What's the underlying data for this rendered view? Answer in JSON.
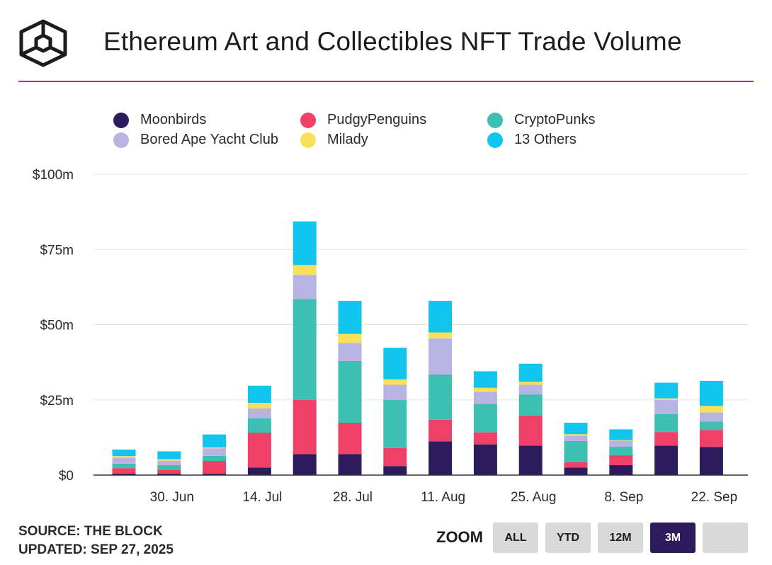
{
  "header": {
    "title": "Ethereum Art and Collectibles NFT Trade Volume"
  },
  "colors": {
    "accent_line": "#9b2bc1",
    "zoom_active": "#2c1c5c"
  },
  "chart_data": {
    "type": "bar",
    "stacked": true,
    "title": "Ethereum Art and Collectibles NFT Trade Volume",
    "xlabel": "",
    "ylabel": "",
    "ylim": [
      0,
      100
    ],
    "y_ticks": [
      0,
      25,
      50,
      75,
      100
    ],
    "y_tick_labels": [
      "$0",
      "$25m",
      "$50m",
      "$75m",
      "$100m"
    ],
    "x_tick_labels": [
      {
        "index": 1,
        "label": "30. Jun"
      },
      {
        "index": 3,
        "label": "14. Jul"
      },
      {
        "index": 5,
        "label": "28. Jul"
      },
      {
        "index": 7,
        "label": "11. Aug"
      },
      {
        "index": 9,
        "label": "25. Aug"
      },
      {
        "index": 11,
        "label": "8. Sep"
      },
      {
        "index": 13,
        "label": "22. Sep"
      }
    ],
    "grid": true,
    "legend_position": "top",
    "categories": [
      "",
      "30. Jun",
      "",
      "14. Jul",
      "",
      "28. Jul",
      "",
      "11. Aug",
      "",
      "25. Aug",
      "",
      "8. Sep",
      "",
      "22. Sep"
    ],
    "series": [
      {
        "name": "Moonbirds",
        "color": "#2c1c5c",
        "values": [
          0.5,
          0.5,
          0.5,
          2.5,
          7,
          7,
          3,
          11.2,
          10.2,
          9.8,
          2.5,
          3.3,
          9.8,
          9.3
        ]
      },
      {
        "name": "PudgyPenguins",
        "color": "#ef4068",
        "values": [
          1.8,
          1.3,
          4.2,
          11.6,
          18,
          10.4,
          6,
          7.2,
          4,
          10,
          1.8,
          3.3,
          4.5,
          5.7
        ]
      },
      {
        "name": "CryptoPunks",
        "color": "#3dbfb2",
        "values": [
          1.5,
          1.5,
          1.7,
          4.8,
          33.5,
          20.5,
          16,
          15,
          9.5,
          7,
          7,
          2.8,
          6,
          2.8
        ]
      },
      {
        "name": "Bored Ape Yacht Club",
        "color": "#b8b3e3",
        "values": [
          2,
          1.5,
          2.5,
          3.3,
          8,
          6,
          5,
          12,
          4,
          3.2,
          1.8,
          2,
          4.7,
          3
        ]
      },
      {
        "name": "Milady",
        "color": "#f8e15a",
        "values": [
          0.5,
          0.5,
          0.3,
          1.8,
          3.3,
          3,
          1.8,
          2,
          1.3,
          1,
          0.5,
          0.2,
          0.5,
          2.2
        ]
      },
      {
        "name": "13 Others",
        "color": "#12c5ef",
        "values": [
          2.2,
          2.6,
          4.3,
          5.7,
          14.5,
          11,
          10.5,
          10.5,
          5.5,
          6,
          3.8,
          3.6,
          5.2,
          8.3
        ]
      }
    ]
  },
  "legend": {
    "items": [
      {
        "label": "Moonbirds",
        "color": "#2c1c5c"
      },
      {
        "label": "PudgyPenguins",
        "color": "#ef4068"
      },
      {
        "label": "CryptoPunks",
        "color": "#3dbfb2"
      },
      {
        "label": "Bored Ape Yacht Club",
        "color": "#b8b3e3"
      },
      {
        "label": "Milady",
        "color": "#f8e15a"
      },
      {
        "label": "13 Others",
        "color": "#12c5ef"
      }
    ]
  },
  "footer": {
    "source": "SOURCE: THE BLOCK",
    "updated": "UPDATED: SEP 27, 2025"
  },
  "zoom": {
    "label": "ZOOM",
    "buttons": [
      "ALL",
      "YTD",
      "12M",
      "3M",
      ""
    ],
    "active": "3M"
  }
}
